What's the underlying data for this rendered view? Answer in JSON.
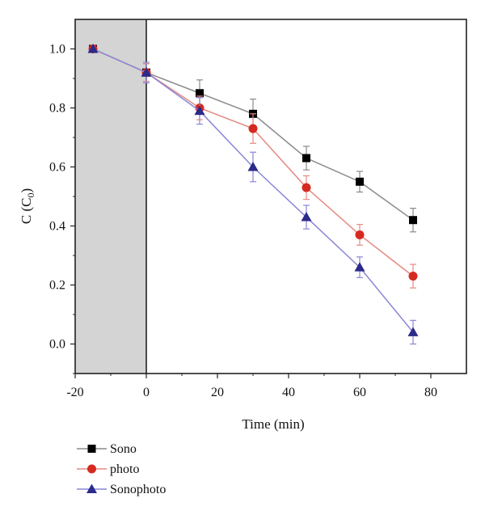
{
  "chart_data": {
    "type": "line",
    "xlabel": "Time (min)",
    "ylabel": "C (C",
    "ylabel_sub": "0",
    "ylabel_close": ")",
    "xlim": [
      -20,
      90
    ],
    "ylim": [
      -0.1,
      1.1
    ],
    "x_ticks": [
      -20,
      0,
      20,
      40,
      60,
      80
    ],
    "x_tick_labels": [
      "-20",
      "0",
      "20",
      "40",
      "60",
      "80"
    ],
    "y_ticks": [
      0.0,
      0.2,
      0.4,
      0.6,
      0.8,
      1.0
    ],
    "y_tick_labels": [
      "0.0",
      "0.2",
      "0.4",
      "0.6",
      "0.8",
      "1.0"
    ],
    "shaded_region": {
      "x": [
        -20,
        0
      ],
      "color": "#d4d4d4"
    },
    "grid": false,
    "legend_position": "below-left",
    "x": [
      -15,
      0,
      15,
      30,
      45,
      60,
      75
    ],
    "series": [
      {
        "name": "Sono",
        "marker": "square",
        "color": "#000000",
        "line_color": "#8a8a8a",
        "values": [
          1.0,
          0.92,
          0.85,
          0.78,
          0.63,
          0.55,
          0.42
        ],
        "errors": [
          0.0,
          0.03,
          0.045,
          0.05,
          0.04,
          0.035,
          0.04
        ]
      },
      {
        "name": "photo",
        "marker": "circle",
        "color": "#d62a20",
        "line_color": "#e58a82",
        "values": [
          1.0,
          0.92,
          0.8,
          0.73,
          0.53,
          0.37,
          0.23
        ],
        "errors": [
          0.0,
          0.03,
          0.04,
          0.05,
          0.04,
          0.035,
          0.04
        ]
      },
      {
        "name": "Sonophoto",
        "marker": "triangle",
        "color": "#2c2a8a",
        "line_color": "#8a86d6",
        "values": [
          1.0,
          0.92,
          0.79,
          0.6,
          0.43,
          0.26,
          0.04
        ],
        "errors": [
          0.0,
          0.035,
          0.045,
          0.05,
          0.04,
          0.035,
          0.04
        ]
      }
    ]
  }
}
